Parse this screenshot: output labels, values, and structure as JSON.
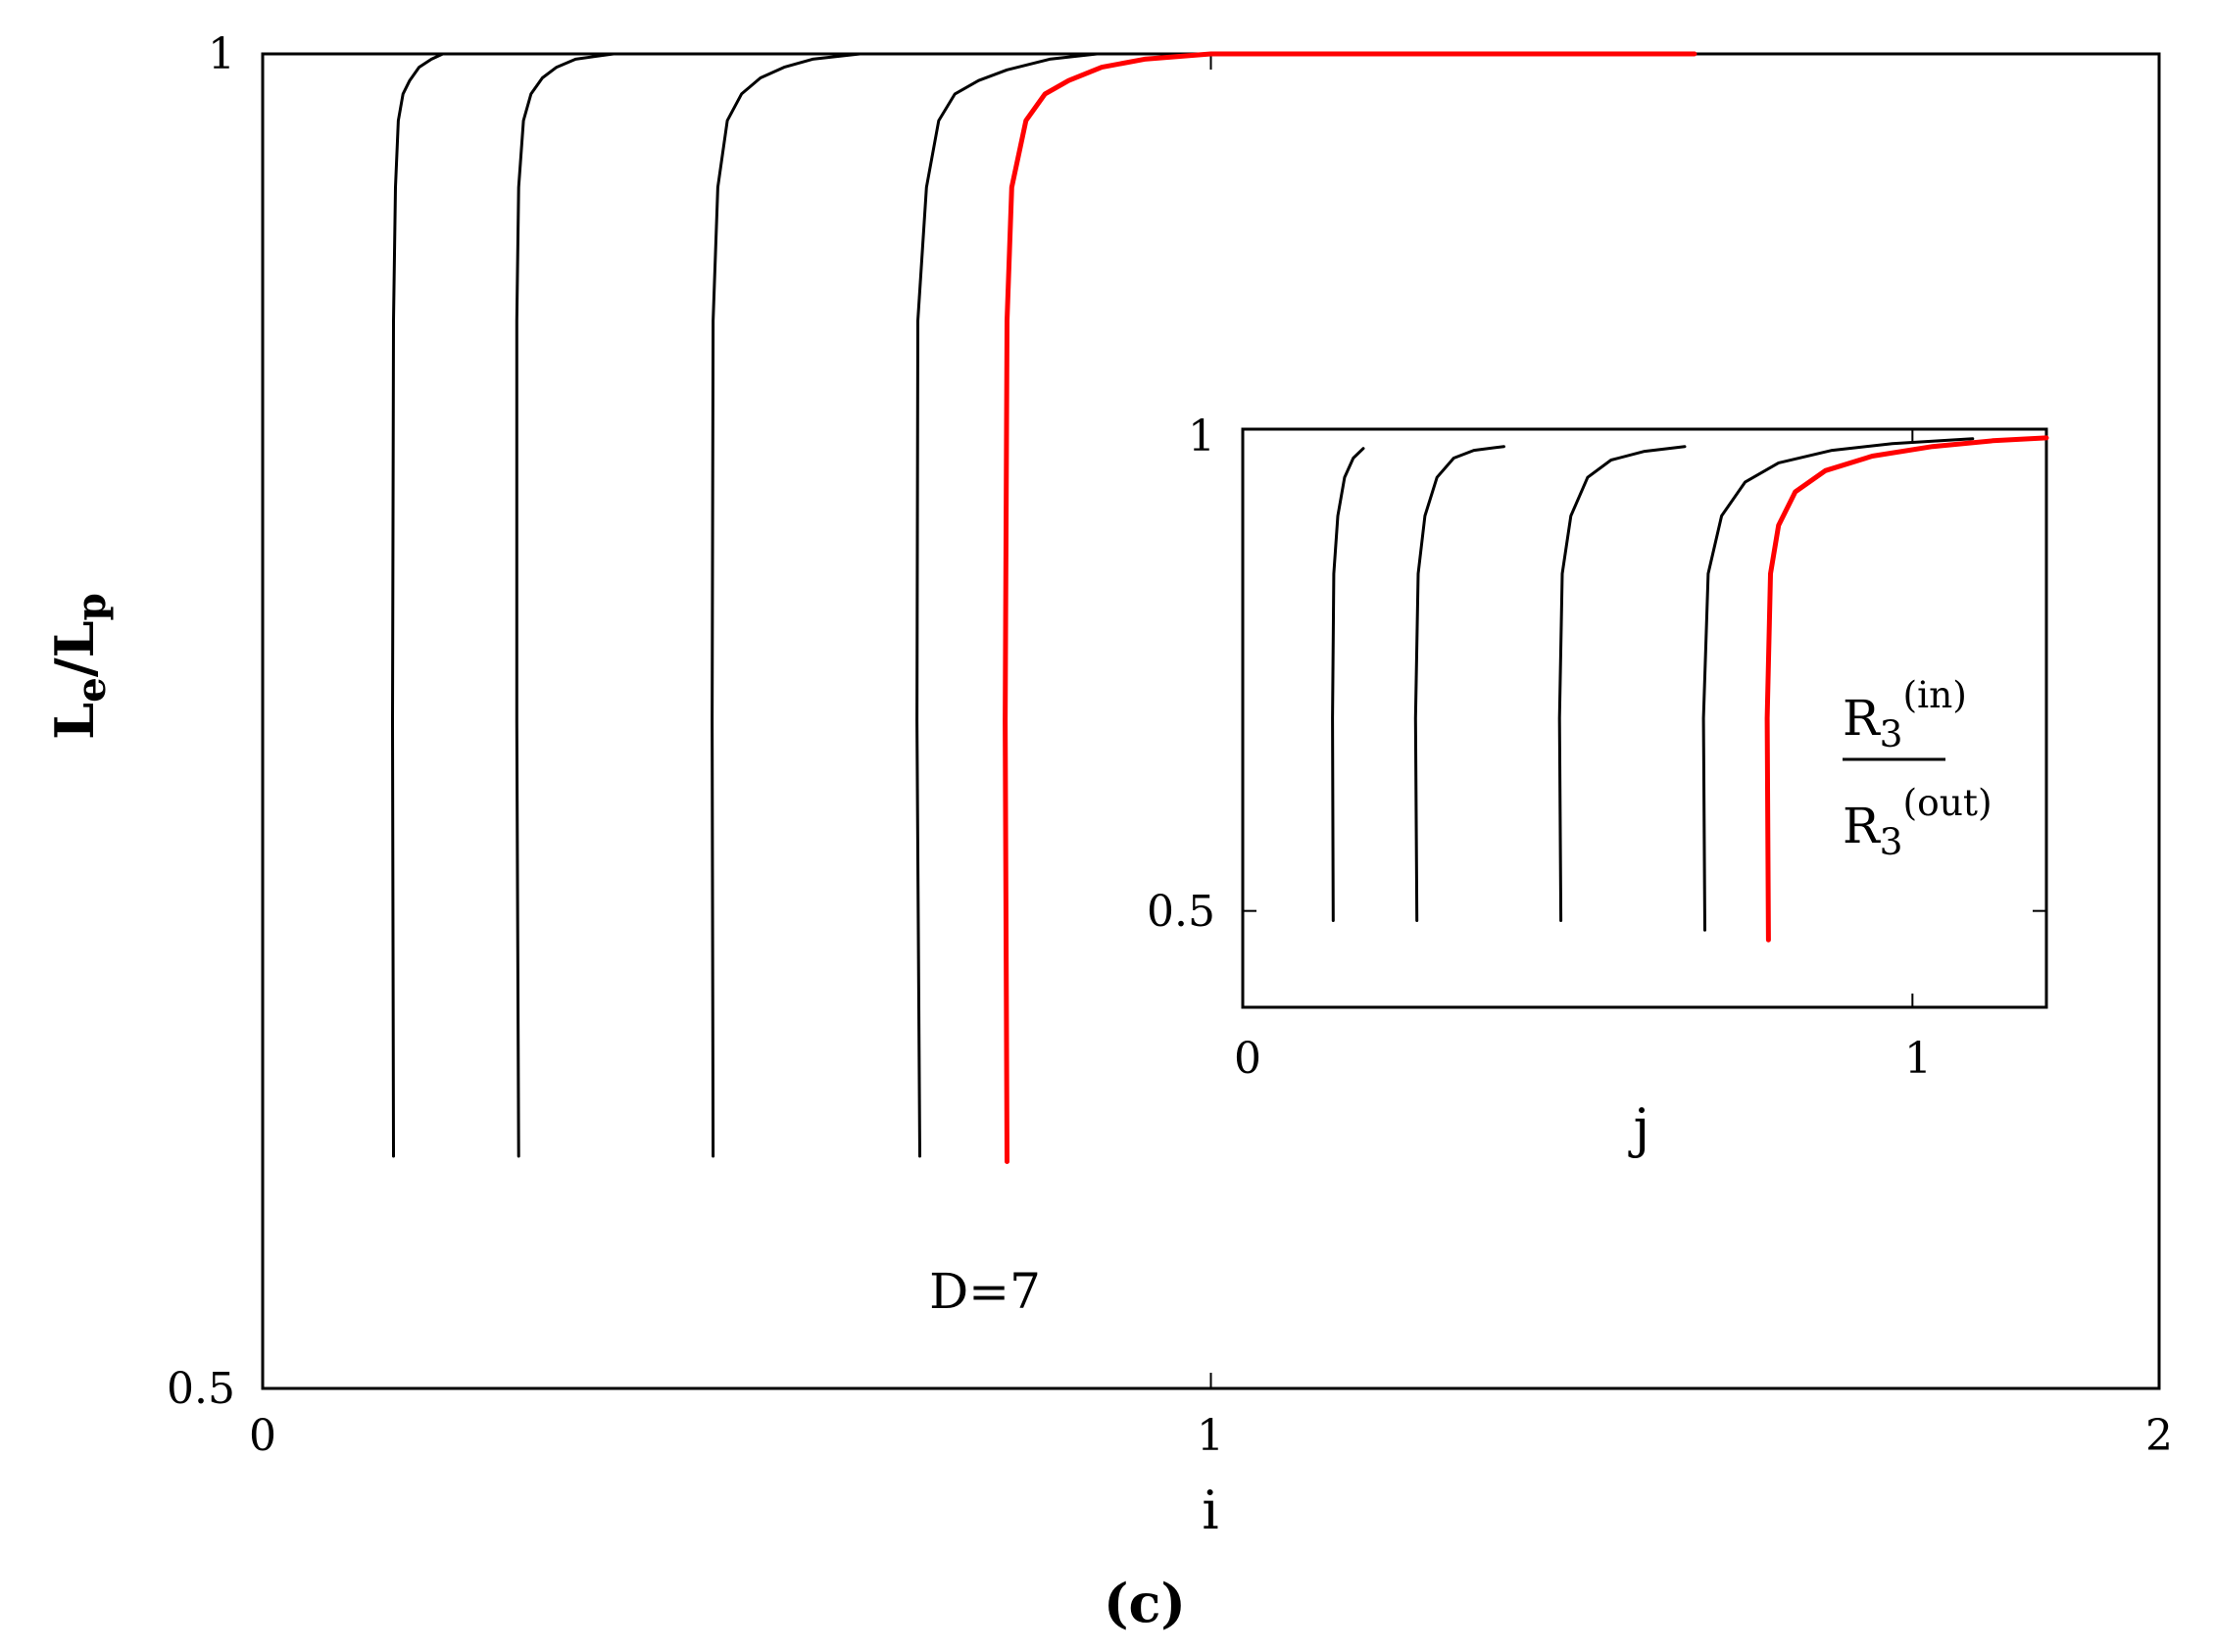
{
  "caption": "(c)",
  "colors": {
    "black": "#000000",
    "red": "#ff0000"
  },
  "chart_data": [
    {
      "type": "line",
      "panel": "main",
      "xlabel": "i",
      "ylabel_main": "L",
      "ylabel_sub1": "e",
      "ylabel_slash": "/L",
      "ylabel_sub2": "p",
      "xlim": [
        0,
        2
      ],
      "ylim": [
        0.5,
        1
      ],
      "xticks": [
        "0",
        "1",
        "2"
      ],
      "yticks": [
        "0.5",
        "1"
      ],
      "annotation": "D=7",
      "series": [
        {
          "color": "#000000",
          "x": [
            0.138,
            0.137,
            0.138,
            0.14,
            0.143,
            0.148,
            0.155,
            0.165,
            0.178,
            0.19
          ],
          "y": [
            0.587,
            0.75,
            0.9,
            0.95,
            0.975,
            0.985,
            0.99,
            0.995,
            0.998,
            1.0
          ]
        },
        {
          "color": "#000000",
          "x": [
            0.27,
            0.268,
            0.268,
            0.27,
            0.275,
            0.283,
            0.295,
            0.31,
            0.33,
            0.35,
            0.37
          ],
          "y": [
            0.587,
            0.75,
            0.9,
            0.95,
            0.975,
            0.985,
            0.991,
            0.995,
            0.998,
            0.999,
            1.0
          ]
        },
        {
          "color": "#000000",
          "x": [
            0.475,
            0.474,
            0.475,
            0.48,
            0.49,
            0.505,
            0.525,
            0.55,
            0.58,
            0.63
          ],
          "y": [
            0.587,
            0.75,
            0.9,
            0.95,
            0.975,
            0.985,
            0.991,
            0.995,
            0.998,
            1.0
          ]
        },
        {
          "color": "#000000",
          "x": [
            0.693,
            0.69,
            0.691,
            0.7,
            0.713,
            0.73,
            0.755,
            0.785,
            0.83,
            0.88
          ],
          "y": [
            0.587,
            0.75,
            0.9,
            0.95,
            0.975,
            0.985,
            0.99,
            0.994,
            0.998,
            1.0
          ]
        },
        {
          "color": "#ff0000",
          "x": [
            0.785,
            0.783,
            0.785,
            0.79,
            0.805,
            0.825,
            0.85,
            0.885,
            0.93,
            1.0,
            1.51
          ],
          "y": [
            0.585,
            0.75,
            0.9,
            0.95,
            0.975,
            0.985,
            0.99,
            0.995,
            0.998,
            1.0,
            1.0
          ]
        }
      ]
    },
    {
      "type": "line",
      "panel": "inset",
      "xlabel": "j",
      "xlim": [
        0,
        1.2
      ],
      "ylim": [
        0.4,
        1
      ],
      "xticks": [
        "0",
        "1"
      ],
      "yticks": [
        "0.5",
        "1"
      ],
      "legend_num_base": "R",
      "legend_num_sub": "3",
      "legend_num_sup": "(in)",
      "legend_den_base": "R",
      "legend_den_sub": "3",
      "legend_den_sup": "(out)",
      "series": [
        {
          "color": "#000000",
          "x": [
            0.135,
            0.134,
            0.136,
            0.142,
            0.152,
            0.165,
            0.18
          ],
          "y": [
            0.49,
            0.7,
            0.85,
            0.91,
            0.95,
            0.97,
            0.98
          ]
        },
        {
          "color": "#000000",
          "x": [
            0.26,
            0.258,
            0.262,
            0.272,
            0.29,
            0.315,
            0.345,
            0.39
          ],
          "y": [
            0.49,
            0.7,
            0.85,
            0.91,
            0.95,
            0.97,
            0.978,
            0.982
          ]
        },
        {
          "color": "#000000",
          "x": [
            0.475,
            0.473,
            0.477,
            0.49,
            0.515,
            0.55,
            0.6,
            0.66
          ],
          "y": [
            0.49,
            0.7,
            0.85,
            0.91,
            0.95,
            0.968,
            0.977,
            0.982
          ]
        },
        {
          "color": "#000000",
          "x": [
            0.69,
            0.688,
            0.695,
            0.715,
            0.75,
            0.8,
            0.88,
            0.97,
            1.09
          ],
          "y": [
            0.48,
            0.7,
            0.85,
            0.91,
            0.945,
            0.965,
            0.978,
            0.985,
            0.99
          ]
        },
        {
          "color": "#ff0000",
          "x": [
            0.785,
            0.783,
            0.788,
            0.8,
            0.825,
            0.87,
            0.94,
            1.03,
            1.12,
            1.2
          ],
          "y": [
            0.47,
            0.7,
            0.85,
            0.9,
            0.935,
            0.957,
            0.972,
            0.982,
            0.988,
            0.991
          ]
        }
      ]
    }
  ]
}
